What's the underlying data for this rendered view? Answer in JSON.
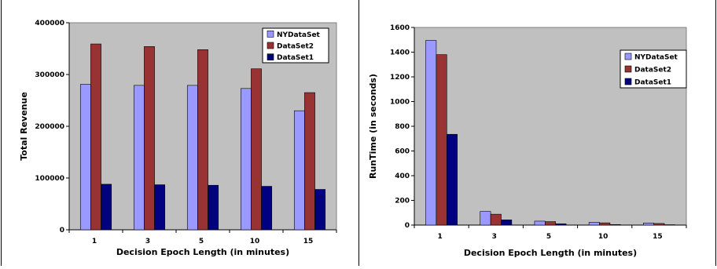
{
  "chart_data": [
    {
      "type": "bar",
      "title": "",
      "xlabel": "Decision Epoch Length (in minutes)",
      "ylabel": "Total Revenue",
      "categories": [
        "1",
        "3",
        "5",
        "10",
        "15"
      ],
      "ylim": [
        0,
        400000
      ],
      "yticks": [
        "0",
        "100000",
        "200000",
        "300000",
        "400000"
      ],
      "grid": false,
      "legend_position": "top-right",
      "series": [
        {
          "name": "NYDataSet",
          "color": "#9999ff",
          "values": [
            281000,
            279000,
            279000,
            273000,
            230000
          ]
        },
        {
          "name": "DataSet2",
          "color": "#993333",
          "values": [
            359000,
            354000,
            348000,
            311000,
            265000
          ]
        },
        {
          "name": "DataSet1",
          "color": "#000080",
          "values": [
            88000,
            87000,
            86000,
            84000,
            78000
          ]
        }
      ],
      "plot_background": "#c0c0c0"
    },
    {
      "type": "bar",
      "title": "",
      "xlabel": "Decision Epoch Length (in minutes)",
      "ylabel": "RunTime (in seconds)",
      "categories": [
        "1",
        "3",
        "5",
        "10",
        "15"
      ],
      "ylim": [
        0,
        1600
      ],
      "yticks": [
        "0",
        "200",
        "400",
        "600",
        "800",
        "1000",
        "1200",
        "1400",
        "1600"
      ],
      "grid": false,
      "legend_position": "top-right",
      "series": [
        {
          "name": "NYDataSet",
          "color": "#9999ff",
          "values": [
            1495,
            110,
            32,
            22,
            17
          ]
        },
        {
          "name": "DataSet2",
          "color": "#993333",
          "values": [
            1380,
            88,
            28,
            18,
            13
          ]
        },
        {
          "name": "DataSet1",
          "color": "#000080",
          "values": [
            735,
            42,
            10,
            4,
            3
          ]
        }
      ],
      "plot_background": "#c0c0c0"
    }
  ]
}
